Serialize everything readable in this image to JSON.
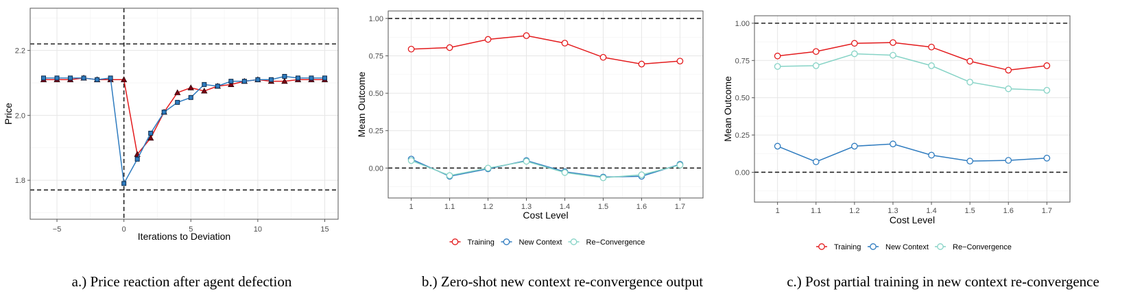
{
  "header": {
    "corner_text": ""
  },
  "captions": {
    "a": "a.) Price reaction after agent defection",
    "b": "b.) Zero-shot new context re-convergence output",
    "c": "c.) Post partial training in new context re-convergence"
  },
  "colors": {
    "red": "#e31a1c",
    "blue": "#2e7bbf",
    "teal": "#86d3c6",
    "dark_red": "#7a0012",
    "dark_blue": "#0d2a4a"
  },
  "chart_data": [
    {
      "type": "line",
      "title": "",
      "xlabel": "Iterations to Deviation",
      "ylabel": "Price",
      "xlim": [
        -7,
        16
      ],
      "ylim": [
        1.68,
        2.33
      ],
      "xticks": [
        -5,
        0,
        5,
        10,
        15
      ],
      "xtick_labels": [
        "−5",
        "0",
        "5",
        "10",
        "15"
      ],
      "yticks": [
        1.8,
        2.0,
        2.2
      ],
      "ytick_labels": [
        "1.8",
        "2.0",
        "2.2"
      ],
      "hlines": [
        2.22,
        1.77
      ],
      "vlines": [
        0
      ],
      "grid": true,
      "legend": "none",
      "x": [
        -6,
        -5,
        -4,
        -3,
        -2,
        -1,
        0,
        1,
        2,
        3,
        4,
        5,
        6,
        7,
        8,
        9,
        10,
        11,
        12,
        13,
        14,
        15
      ],
      "series": [
        {
          "color": "#e31a1c",
          "marker": "triangle",
          "values": [
            2.11,
            2.11,
            2.11,
            2.115,
            2.11,
            2.11,
            2.11,
            1.88,
            1.93,
            2.01,
            2.07,
            2.085,
            2.075,
            2.09,
            2.095,
            2.105,
            2.11,
            2.105,
            2.105,
            2.11,
            2.11,
            2.11
          ]
        },
        {
          "color": "#2e7bbf",
          "marker": "square",
          "values": [
            2.115,
            2.115,
            2.115,
            2.115,
            2.11,
            2.115,
            1.79,
            1.865,
            1.945,
            2.01,
            2.04,
            2.055,
            2.095,
            2.09,
            2.105,
            2.105,
            2.11,
            2.11,
            2.12,
            2.115,
            2.115,
            2.115
          ]
        }
      ]
    },
    {
      "type": "line",
      "title": "",
      "xlabel": "Cost Level",
      "ylabel": "Mean Outcome",
      "xlim": [
        0.94,
        1.76
      ],
      "ylim": [
        -0.2,
        1.05
      ],
      "xticks": [
        1.0,
        1.1,
        1.2,
        1.3,
        1.4,
        1.5,
        1.6,
        1.7
      ],
      "xtick_labels": [
        "1",
        "1.1",
        "1.2",
        "1.3",
        "1.4",
        "1.5",
        "1.6",
        "1.7"
      ],
      "yticks": [
        0.0,
        0.25,
        0.5,
        0.75,
        1.0
      ],
      "ytick_labels": [
        "0.00",
        "0.25",
        "0.50",
        "0.75",
        "1.00"
      ],
      "hlines": [
        1.0,
        0.0
      ],
      "grid": true,
      "legend": "bottom",
      "x": [
        1.0,
        1.1,
        1.2,
        1.3,
        1.4,
        1.5,
        1.6,
        1.7
      ],
      "series": [
        {
          "name": "Training",
          "color": "#e31a1c",
          "values": [
            0.795,
            0.805,
            0.86,
            0.885,
            0.835,
            0.74,
            0.695,
            0.715
          ]
        },
        {
          "name": "New Context",
          "color": "#2e7bbf",
          "values": [
            0.06,
            -0.055,
            -0.005,
            0.05,
            -0.025,
            -0.06,
            -0.055,
            0.025
          ]
        },
        {
          "name": "Re−Convergence",
          "color": "#86d3c6",
          "values": [
            0.05,
            -0.05,
            0.0,
            0.045,
            -0.03,
            -0.065,
            -0.045,
            0.02
          ]
        }
      ]
    },
    {
      "type": "line",
      "title": "",
      "xlabel": "Cost Level",
      "ylabel": "Mean Outcome",
      "xlim": [
        0.94,
        1.76
      ],
      "ylim": [
        -0.2,
        1.05
      ],
      "xticks": [
        1.0,
        1.1,
        1.2,
        1.3,
        1.4,
        1.5,
        1.6,
        1.7
      ],
      "xtick_labels": [
        "1",
        "1.1",
        "1.2",
        "1.3",
        "1.4",
        "1.5",
        "1.6",
        "1.7"
      ],
      "yticks": [
        0.0,
        0.25,
        0.5,
        0.75,
        1.0
      ],
      "ytick_labels": [
        "0.00",
        "0.25",
        "0.50",
        "0.75",
        "1.00"
      ],
      "hlines": [
        1.0,
        0.0
      ],
      "grid": true,
      "legend": "bottom",
      "x": [
        1.0,
        1.1,
        1.2,
        1.3,
        1.4,
        1.5,
        1.6,
        1.7
      ],
      "series": [
        {
          "name": "Training",
          "color": "#e31a1c",
          "values": [
            0.78,
            0.81,
            0.865,
            0.87,
            0.84,
            0.745,
            0.685,
            0.715
          ]
        },
        {
          "name": "New Context",
          "color": "#2e7bbf",
          "values": [
            0.175,
            0.07,
            0.175,
            0.19,
            0.115,
            0.075,
            0.08,
            0.095
          ]
        },
        {
          "name": "Re−Convergence",
          "color": "#86d3c6",
          "values": [
            0.71,
            0.715,
            0.795,
            0.785,
            0.715,
            0.605,
            0.56,
            0.55
          ]
        }
      ]
    }
  ]
}
